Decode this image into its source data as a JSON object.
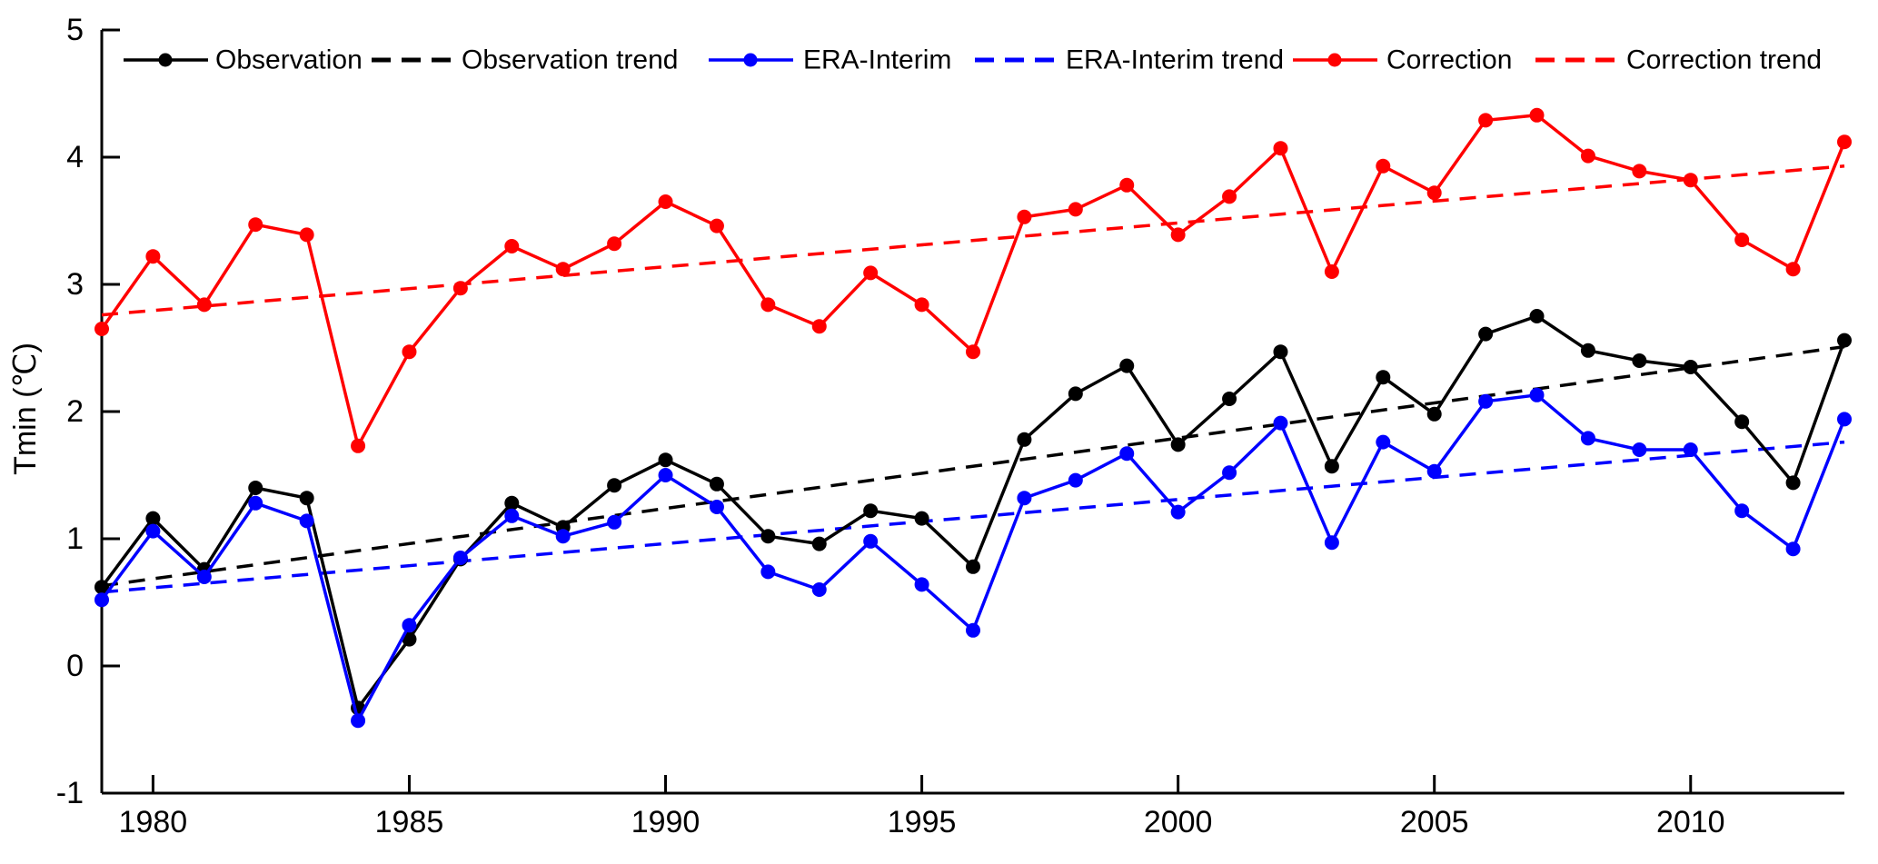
{
  "chart_data": {
    "type": "line",
    "title": "",
    "xlabel": "",
    "ylabel": "Tmin (℃)",
    "xlim": [
      1979,
      2013
    ],
    "ylim": [
      -1,
      5
    ],
    "xticks": [
      1980,
      1985,
      1990,
      1995,
      2000,
      2005,
      2010
    ],
    "yticks": [
      -1,
      0,
      1,
      2,
      3,
      4,
      5
    ],
    "grid": false,
    "legend_position": "top-inside-horizontal",
    "x": [
      1979,
      1980,
      1981,
      1982,
      1983,
      1984,
      1985,
      1986,
      1987,
      1988,
      1989,
      1990,
      1991,
      1992,
      1993,
      1994,
      1995,
      1996,
      1997,
      1998,
      1999,
      2000,
      2001,
      2002,
      2003,
      2004,
      2005,
      2006,
      2007,
      2008,
      2009,
      2010,
      2011,
      2012,
      2013
    ],
    "series": [
      {
        "name": "Observation",
        "style": "solid-dot",
        "color": "#000000",
        "values": [
          0.62,
          1.16,
          0.76,
          1.4,
          1.32,
          -0.33,
          0.21,
          0.84,
          1.28,
          1.09,
          1.42,
          1.62,
          1.43,
          1.02,
          0.96,
          1.22,
          1.16,
          0.78,
          1.78,
          2.14,
          2.36,
          1.74,
          2.1,
          2.47,
          1.57,
          2.27,
          1.98,
          2.61,
          2.75,
          2.48,
          2.4,
          2.35,
          1.92,
          1.44,
          2.56
        ]
      },
      {
        "name": "Observation trend",
        "style": "dashed",
        "color": "#000000",
        "trend_endpoints": [
          0.63,
          2.51
        ]
      },
      {
        "name": "ERA-Interim",
        "style": "solid-dot",
        "color": "#0000ff",
        "values": [
          0.52,
          1.06,
          0.7,
          1.28,
          1.14,
          -0.43,
          0.32,
          0.85,
          1.18,
          1.02,
          1.13,
          1.5,
          1.25,
          0.74,
          0.6,
          0.98,
          0.64,
          0.28,
          1.32,
          1.46,
          1.67,
          1.21,
          1.52,
          1.91,
          0.97,
          1.76,
          1.53,
          2.08,
          2.13,
          1.79,
          1.7,
          1.7,
          1.22,
          0.92,
          1.94
        ]
      },
      {
        "name": "ERA-Interim trend",
        "style": "dashed",
        "color": "#0000ff",
        "trend_endpoints": [
          0.58,
          1.76
        ]
      },
      {
        "name": "Correction",
        "style": "solid-dot",
        "color": "#ff0000",
        "values": [
          2.65,
          3.22,
          2.84,
          3.47,
          3.39,
          1.73,
          2.47,
          2.97,
          3.3,
          3.12,
          3.32,
          3.65,
          3.46,
          2.84,
          2.67,
          3.09,
          2.84,
          2.47,
          3.53,
          3.59,
          3.78,
          3.39,
          3.69,
          4.07,
          3.1,
          3.93,
          3.72,
          4.29,
          4.33,
          4.01,
          3.89,
          3.82,
          3.35,
          3.12,
          4.12
        ]
      },
      {
        "name": "Correction trend",
        "style": "dashed",
        "color": "#ff0000",
        "trend_endpoints": [
          2.76,
          3.93
        ]
      }
    ]
  }
}
